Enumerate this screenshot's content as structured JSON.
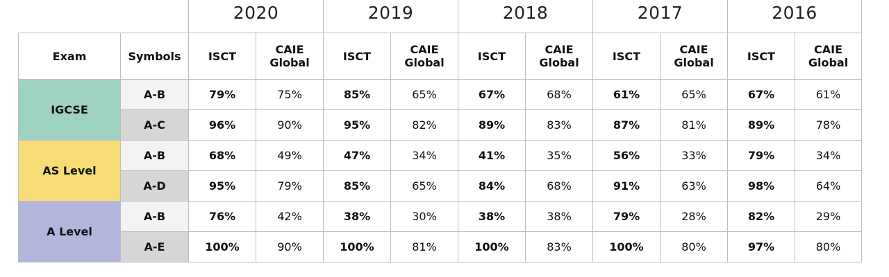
{
  "years": [
    "2020",
    "2019",
    "2018",
    "2017",
    "2016"
  ],
  "headers": {
    "exam": "Exam",
    "symbols": "Symbols",
    "isct": "ISCT",
    "caie_line1": "CAIE",
    "caie_line2": "Global"
  },
  "colors": {
    "igcse": "#9ed3c2",
    "as_level": "#f8dd76",
    "a_level": "#b2b6dc"
  },
  "groups": [
    {
      "exam": "IGCSE",
      "rows": [
        {
          "symbol": "A-B",
          "values": [
            "79%",
            "75%",
            "85%",
            "65%",
            "67%",
            "68%",
            "61%",
            "65%",
            "67%",
            "61%"
          ]
        },
        {
          "symbol": "A-C",
          "values": [
            "96%",
            "90%",
            "95%",
            "82%",
            "89%",
            "83%",
            "87%",
            "81%",
            "89%",
            "78%"
          ]
        }
      ]
    },
    {
      "exam": "AS Level",
      "rows": [
        {
          "symbol": "A-B",
          "values": [
            "68%",
            "49%",
            "47%",
            "34%",
            "41%",
            "35%",
            "56%",
            "33%",
            "79%",
            "34%"
          ]
        },
        {
          "symbol": "A-D",
          "values": [
            "95%",
            "79%",
            "85%",
            "65%",
            "84%",
            "68%",
            "91%",
            "63%",
            "98%",
            "64%"
          ]
        }
      ]
    },
    {
      "exam": "A Level",
      "rows": [
        {
          "symbol": "A-B",
          "values": [
            "76%",
            "42%",
            "38%",
            "30%",
            "38%",
            "38%",
            "79%",
            "28%",
            "82%",
            "29%"
          ]
        },
        {
          "symbol": "A-E",
          "values": [
            "100%",
            "90%",
            "100%",
            "81%",
            "100%",
            "83%",
            "100%",
            "80%",
            "97%",
            "80%"
          ]
        }
      ]
    }
  ]
}
